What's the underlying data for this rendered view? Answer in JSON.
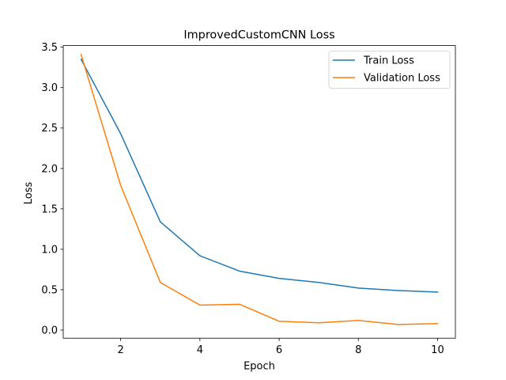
{
  "chart_data": {
    "type": "line",
    "title": "ImprovedCustomCNN Loss",
    "xlabel": "Epoch",
    "ylabel": "Loss",
    "x": [
      1,
      2,
      3,
      4,
      5,
      6,
      7,
      8,
      9,
      10
    ],
    "xlim": [
      0.55,
      10.45
    ],
    "ylim": [
      -0.1,
      3.52
    ],
    "xticks": [
      2,
      4,
      6,
      8,
      10
    ],
    "yticks": [
      0.0,
      0.5,
      1.0,
      1.5,
      2.0,
      2.5,
      3.0,
      3.5
    ],
    "grid": false,
    "legend_position": "top-right",
    "series": [
      {
        "name": "Train Loss",
        "color": "#1f77b4",
        "values": [
          3.35,
          2.43,
          1.34,
          0.92,
          0.73,
          0.64,
          0.59,
          0.52,
          0.49,
          0.47
        ]
      },
      {
        "name": "Validation Loss",
        "color": "#ff7f0e",
        "values": [
          3.41,
          1.79,
          0.59,
          0.31,
          0.32,
          0.11,
          0.09,
          0.12,
          0.07,
          0.08
        ]
      }
    ]
  }
}
